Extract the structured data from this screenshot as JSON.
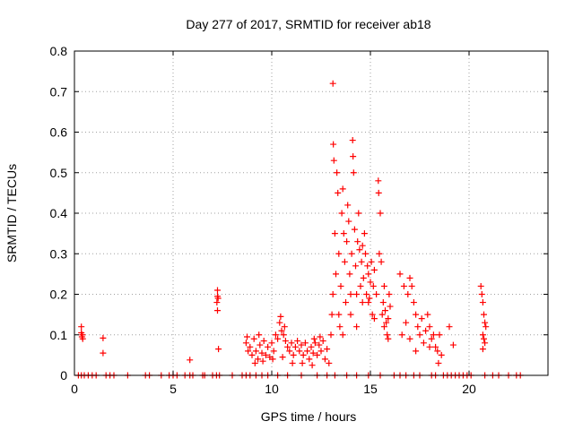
{
  "chart_data": {
    "type": "scatter",
    "title": "Day 277 of 2017, SRMTID for receiver ab18",
    "xlabel": "GPS time / hours",
    "ylabel": "SRMTID / TECUs",
    "xlim": [
      0,
      24
    ],
    "ylim": [
      0,
      0.8
    ],
    "x_ticks": [
      "0",
      "5",
      "10",
      "15",
      "20"
    ],
    "y_ticks": [
      "0",
      "0.1",
      "0.2",
      "0.3",
      "0.4",
      "0.5",
      "0.6",
      "0.7",
      "0.8"
    ],
    "grid": true,
    "marker": "+",
    "color": "#ff0000",
    "series": [
      {
        "name": "SRMTID",
        "points": [
          [
            0.2,
            0
          ],
          [
            0.35,
            0
          ],
          [
            0.5,
            0
          ],
          [
            0.7,
            0
          ],
          [
            0.9,
            0
          ],
          [
            1.1,
            0
          ],
          [
            1.6,
            0
          ],
          [
            1.8,
            0
          ],
          [
            2.0,
            0
          ],
          [
            2.7,
            0
          ],
          [
            3.6,
            0
          ],
          [
            3.8,
            0
          ],
          [
            4.4,
            0
          ],
          [
            4.8,
            0
          ],
          [
            5.0,
            0
          ],
          [
            5.2,
            0
          ],
          [
            5.6,
            0
          ],
          [
            5.85,
            0
          ],
          [
            6.0,
            0
          ],
          [
            6.5,
            0
          ],
          [
            6.6,
            0
          ],
          [
            7.0,
            0
          ],
          [
            7.2,
            0
          ],
          [
            7.35,
            0
          ],
          [
            8.0,
            0
          ],
          [
            8.5,
            0
          ],
          [
            8.7,
            0
          ],
          [
            8.9,
            0
          ],
          [
            9.2,
            0
          ],
          [
            9.5,
            0
          ],
          [
            9.8,
            0
          ],
          [
            10.3,
            0
          ],
          [
            10.8,
            0
          ],
          [
            11.5,
            0
          ],
          [
            12.3,
            0
          ],
          [
            12.8,
            0
          ],
          [
            13.2,
            0
          ],
          [
            13.8,
            0
          ],
          [
            14.3,
            0
          ],
          [
            14.9,
            0
          ],
          [
            15.5,
            0
          ],
          [
            16.2,
            0
          ],
          [
            16.5,
            0
          ],
          [
            16.8,
            0
          ],
          [
            17.2,
            0
          ],
          [
            17.5,
            0
          ],
          [
            18.1,
            0
          ],
          [
            18.3,
            0
          ],
          [
            18.7,
            0
          ],
          [
            18.9,
            0
          ],
          [
            19.1,
            0
          ],
          [
            19.3,
            0
          ],
          [
            19.5,
            0
          ],
          [
            19.7,
            0
          ],
          [
            19.9,
            0
          ],
          [
            20.1,
            0
          ],
          [
            20.8,
            0
          ],
          [
            21.2,
            0
          ],
          [
            21.5,
            0
          ],
          [
            22.0,
            0
          ],
          [
            22.4,
            0
          ],
          [
            22.6,
            0
          ],
          [
            0.35,
            0.12
          ],
          [
            0.35,
            0.105
          ],
          [
            0.38,
            0.095
          ],
          [
            0.42,
            0.09
          ],
          [
            0.4,
            0.1
          ],
          [
            1.45,
            0.092
          ],
          [
            1.45,
            0.055
          ],
          [
            5.85,
            0.038
          ],
          [
            7.25,
            0.21
          ],
          [
            7.25,
            0.195
          ],
          [
            7.28,
            0.19
          ],
          [
            7.22,
            0.18
          ],
          [
            7.25,
            0.16
          ],
          [
            7.3,
            0.065
          ],
          [
            8.7,
            0.08
          ],
          [
            8.8,
            0.06
          ],
          [
            8.9,
            0.07
          ],
          [
            9.0,
            0.05
          ],
          [
            9.1,
            0.09
          ],
          [
            9.2,
            0.06
          ],
          [
            9.3,
            0.04
          ],
          [
            9.4,
            0.075
          ],
          [
            9.5,
            0.055
          ],
          [
            9.6,
            0.085
          ],
          [
            9.7,
            0.05
          ],
          [
            9.8,
            0.07
          ],
          [
            9.9,
            0.045
          ],
          [
            10.0,
            0.08
          ],
          [
            10.1,
            0.06
          ],
          [
            10.2,
            0.1
          ],
          [
            10.3,
            0.09
          ],
          [
            10.4,
            0.13
          ],
          [
            10.45,
            0.145
          ],
          [
            10.5,
            0.11
          ],
          [
            10.6,
            0.1
          ],
          [
            10.7,
            0.085
          ],
          [
            10.8,
            0.07
          ],
          [
            10.9,
            0.06
          ],
          [
            11.0,
            0.08
          ],
          [
            11.1,
            0.05
          ],
          [
            11.2,
            0.07
          ],
          [
            11.3,
            0.085
          ],
          [
            11.4,
            0.06
          ],
          [
            11.5,
            0.075
          ],
          [
            11.6,
            0.05
          ],
          [
            11.7,
            0.08
          ],
          [
            11.8,
            0.06
          ],
          [
            11.9,
            0.04
          ],
          [
            12.0,
            0.07
          ],
          [
            12.1,
            0.055
          ],
          [
            12.2,
            0.08
          ],
          [
            12.3,
            0.05
          ],
          [
            12.4,
            0.075
          ],
          [
            12.5,
            0.06
          ],
          [
            12.6,
            0.085
          ],
          [
            12.7,
            0.04
          ],
          [
            12.8,
            0.065
          ],
          [
            12.9,
            0.03
          ],
          [
            8.75,
            0.095
          ],
          [
            9.15,
            0.03
          ],
          [
            9.55,
            0.035
          ],
          [
            10.05,
            0.04
          ],
          [
            10.55,
            0.045
          ],
          [
            11.05,
            0.03
          ],
          [
            11.55,
            0.03
          ],
          [
            12.05,
            0.025
          ],
          [
            12.45,
            0.095
          ],
          [
            12.15,
            0.09
          ],
          [
            9.35,
            0.1
          ],
          [
            10.65,
            0.12
          ],
          [
            13.0,
            0.1
          ],
          [
            13.05,
            0.15
          ],
          [
            13.1,
            0.2
          ],
          [
            13.1,
            0.72
          ],
          [
            13.12,
            0.57
          ],
          [
            13.15,
            0.53
          ],
          [
            13.2,
            0.35
          ],
          [
            13.25,
            0.25
          ],
          [
            13.3,
            0.5
          ],
          [
            13.35,
            0.45
          ],
          [
            13.4,
            0.3
          ],
          [
            13.45,
            0.12
          ],
          [
            13.5,
            0.22
          ],
          [
            13.55,
            0.4
          ],
          [
            13.6,
            0.46
          ],
          [
            13.65,
            0.35
          ],
          [
            13.7,
            0.28
          ],
          [
            13.75,
            0.18
          ],
          [
            13.8,
            0.33
          ],
          [
            13.85,
            0.42
          ],
          [
            13.9,
            0.38
          ],
          [
            13.95,
            0.25
          ],
          [
            14.0,
            0.15
          ],
          [
            14.05,
            0.3
          ],
          [
            14.1,
            0.58
          ],
          [
            14.12,
            0.54
          ],
          [
            14.15,
            0.5
          ],
          [
            14.2,
            0.36
          ],
          [
            14.25,
            0.27
          ],
          [
            14.3,
            0.2
          ],
          [
            14.35,
            0.33
          ],
          [
            14.4,
            0.4
          ],
          [
            14.45,
            0.31
          ],
          [
            14.5,
            0.22
          ],
          [
            14.55,
            0.28
          ],
          [
            14.6,
            0.18
          ],
          [
            14.65,
            0.24
          ],
          [
            14.7,
            0.35
          ],
          [
            14.75,
            0.3
          ],
          [
            14.8,
            0.2
          ],
          [
            14.85,
            0.27
          ],
          [
            14.9,
            0.25
          ],
          [
            14.95,
            0.19
          ],
          [
            15.0,
            0.23
          ],
          [
            15.05,
            0.28
          ],
          [
            15.1,
            0.15
          ],
          [
            15.15,
            0.22
          ],
          [
            15.2,
            0.26
          ],
          [
            15.3,
            0.2
          ],
          [
            15.4,
            0.48
          ],
          [
            15.42,
            0.45
          ],
          [
            15.45,
            0.3
          ],
          [
            15.5,
            0.4
          ],
          [
            15.55,
            0.28
          ],
          [
            15.6,
            0.15
          ],
          [
            15.65,
            0.18
          ],
          [
            15.7,
            0.12
          ],
          [
            15.75,
            0.16
          ],
          [
            15.8,
            0.13
          ],
          [
            15.85,
            0.1
          ],
          [
            15.9,
            0.14
          ],
          [
            15.95,
            0.2
          ],
          [
            16.0,
            0.17
          ],
          [
            13.4,
            0.15
          ],
          [
            13.6,
            0.1
          ],
          [
            14.0,
            0.2
          ],
          [
            14.3,
            0.12
          ],
          [
            14.6,
            0.32
          ],
          [
            14.9,
            0.18
          ],
          [
            15.2,
            0.14
          ],
          [
            15.7,
            0.22
          ],
          [
            15.9,
            0.09
          ],
          [
            16.5,
            0.25
          ],
          [
            16.7,
            0.22
          ],
          [
            16.9,
            0.2
          ],
          [
            17.0,
            0.24
          ],
          [
            17.1,
            0.22
          ],
          [
            17.2,
            0.18
          ],
          [
            17.3,
            0.15
          ],
          [
            17.4,
            0.12
          ],
          [
            17.5,
            0.1
          ],
          [
            17.6,
            0.14
          ],
          [
            17.7,
            0.08
          ],
          [
            17.8,
            0.11
          ],
          [
            17.9,
            0.15
          ],
          [
            18.0,
            0.12
          ],
          [
            18.1,
            0.09
          ],
          [
            18.2,
            0.1
          ],
          [
            18.3,
            0.07
          ],
          [
            18.4,
            0.06
          ],
          [
            18.5,
            0.1
          ],
          [
            18.6,
            0.05
          ],
          [
            19.0,
            0.12
          ],
          [
            19.2,
            0.075
          ],
          [
            16.6,
            0.1
          ],
          [
            16.8,
            0.13
          ],
          [
            17.0,
            0.09
          ],
          [
            17.3,
            0.06
          ],
          [
            18.0,
            0.07
          ],
          [
            18.45,
            0.03
          ],
          [
            20.6,
            0.22
          ],
          [
            20.65,
            0.2
          ],
          [
            20.7,
            0.18
          ],
          [
            20.75,
            0.15
          ],
          [
            20.8,
            0.13
          ],
          [
            20.85,
            0.12
          ],
          [
            20.7,
            0.1
          ],
          [
            20.75,
            0.09
          ],
          [
            20.8,
            0.08
          ],
          [
            20.7,
            0.065
          ]
        ]
      }
    ]
  }
}
